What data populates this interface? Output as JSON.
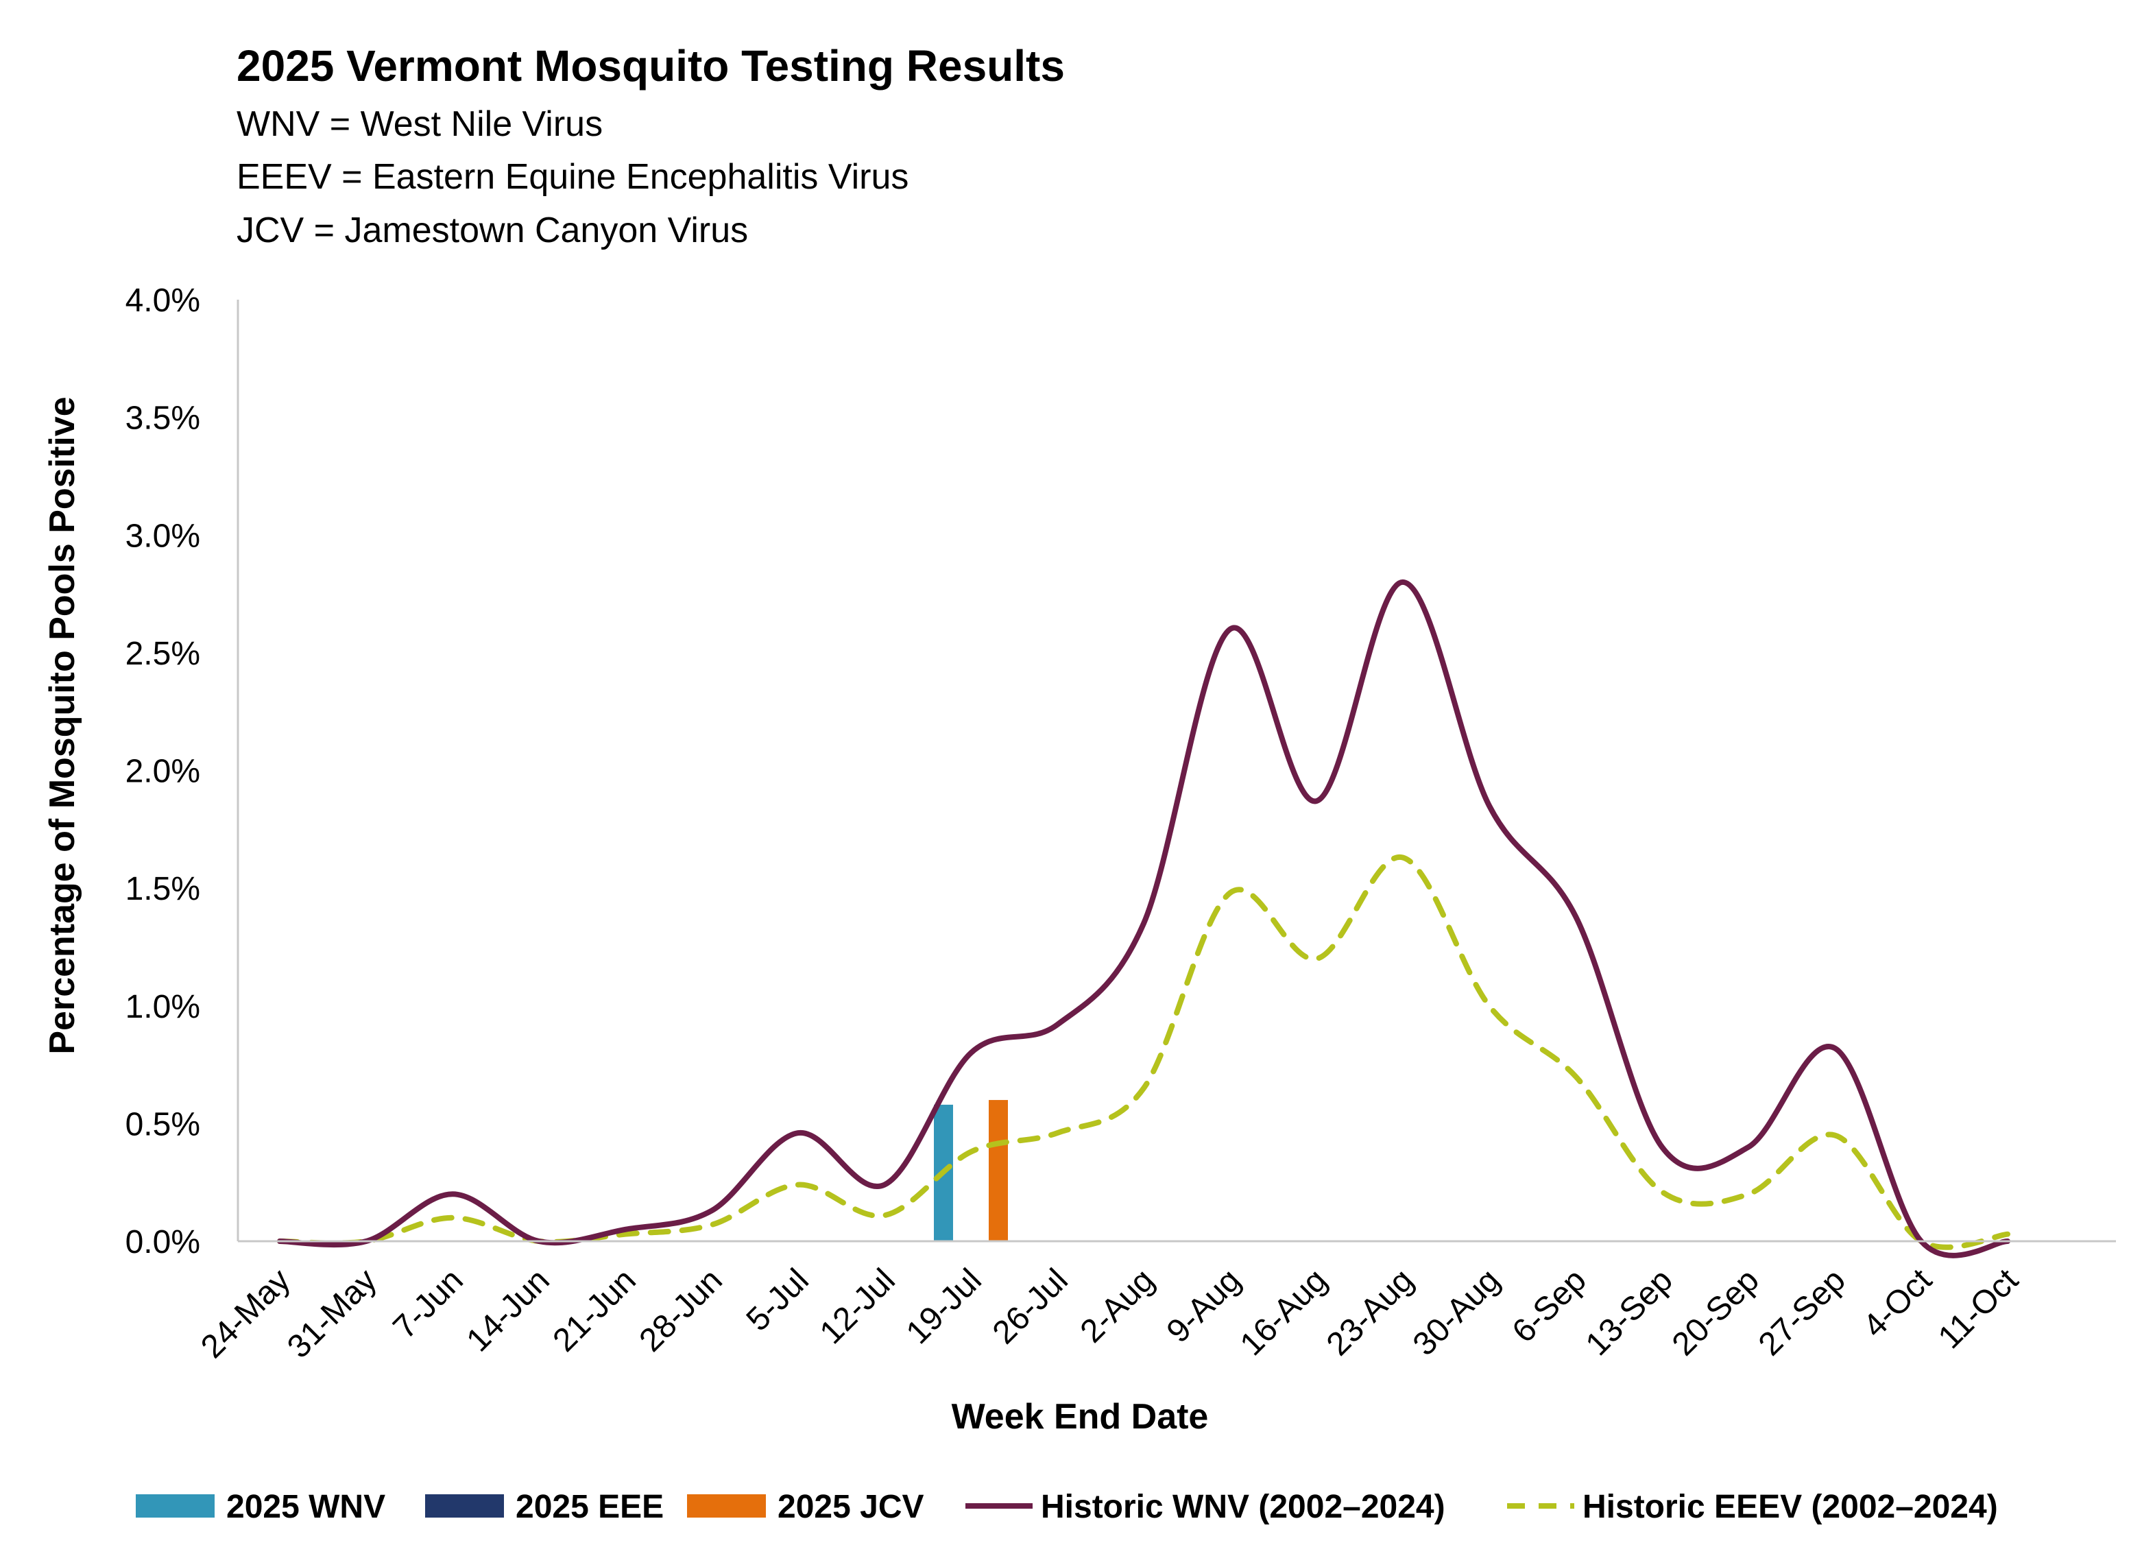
{
  "chart_data": {
    "type": "bar+line",
    "title": "2025 Vermont Mosquito Testing Results",
    "subtitle_lines": [
      "WNV = West Nile Virus",
      "EEEV = Eastern Equine Encephalitis Virus",
      "JCV = Jamestown Canyon Virus"
    ],
    "xlabel": "Week End Date",
    "ylabel": "Percentage of Mosquito Pools Positive",
    "ylim": [
      0,
      4.0
    ],
    "y_ticks": [
      "0.0%",
      "0.5%",
      "1.0%",
      "1.5%",
      "2.0%",
      "2.5%",
      "3.0%",
      "3.5%",
      "4.0%"
    ],
    "categories": [
      "24-May",
      "31-May",
      "7-Jun",
      "14-Jun",
      "21-Jun",
      "28-Jun",
      "5-Jul",
      "12-Jul",
      "19-Jul",
      "26-Jul",
      "2-Aug",
      "9-Aug",
      "16-Aug",
      "23-Aug",
      "30-Aug",
      "6-Sep",
      "13-Sep",
      "20-Sep",
      "27-Sep",
      "4-Oct",
      "11-Oct"
    ],
    "bar_series": [
      {
        "name": "2025 WNV",
        "color": "#3296b8",
        "values": [
          null,
          null,
          null,
          null,
          null,
          null,
          null,
          null,
          0.58,
          null,
          null,
          null,
          null,
          null,
          null,
          null,
          null,
          null,
          null,
          null,
          null
        ]
      },
      {
        "name": "2025 EEE",
        "color": "#22386b",
        "values": [
          null,
          null,
          null,
          null,
          null,
          null,
          null,
          null,
          0,
          null,
          null,
          null,
          null,
          null,
          null,
          null,
          null,
          null,
          null,
          null,
          null
        ]
      },
      {
        "name": "2025 JCV",
        "color": "#e56f0c",
        "values": [
          null,
          null,
          null,
          null,
          null,
          null,
          null,
          null,
          0.6,
          null,
          null,
          null,
          null,
          null,
          null,
          null,
          null,
          null,
          null,
          null,
          null
        ]
      }
    ],
    "line_series": [
      {
        "name": "Historic WNV (2002–2024)",
        "color": "#6b1d47",
        "dash": false,
        "values": [
          0.0,
          0.0,
          0.2,
          0.0,
          0.05,
          0.13,
          0.46,
          0.24,
          0.8,
          0.92,
          1.35,
          2.6,
          1.87,
          2.8,
          1.85,
          1.38,
          0.4,
          0.4,
          0.82,
          0.0,
          0.0
        ]
      },
      {
        "name": "Historic EEEV (2002–2024)",
        "color": "#b5c21d",
        "dash": true,
        "values": [
          0.0,
          0.0,
          0.1,
          0.0,
          0.03,
          0.07,
          0.24,
          0.11,
          0.38,
          0.46,
          0.65,
          1.48,
          1.2,
          1.63,
          1.0,
          0.7,
          0.21,
          0.2,
          0.45,
          0.0,
          0.03
        ]
      }
    ],
    "legend_position": "bottom",
    "grid": false
  }
}
